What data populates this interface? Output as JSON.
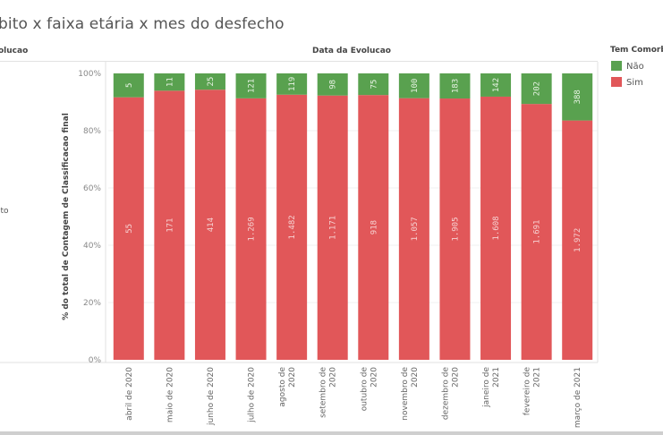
{
  "title": "bito x faixa etária x mes do desfecho",
  "row_header": "olucao",
  "row_label": "ito",
  "colors": {
    "nao": "#59a14f",
    "sim": "#e15759"
  },
  "chart_data": {
    "type": "bar",
    "stacked": true,
    "normalized": true,
    "title": "bito x faixa etária x mes do desfecho",
    "xlabel": "Data da Evolucao",
    "ylabel": "% do total de Contagem de Classificacao final",
    "ylim": [
      0,
      100
    ],
    "yticks": [
      "0%",
      "20%",
      "40%",
      "60%",
      "80%",
      "100%"
    ],
    "ytick_values": [
      0,
      20,
      40,
      60,
      80,
      100
    ],
    "grid": true,
    "legend": {
      "title": "Tem Comorb",
      "placement": "right",
      "entries": [
        "Não",
        "Sim"
      ]
    },
    "categories": [
      [
        "abril de 2020"
      ],
      [
        "maio de 2020"
      ],
      [
        "junho de 2020"
      ],
      [
        "julho de 2020"
      ],
      [
        "agosto de",
        "2020"
      ],
      [
        "setembro de",
        "2020"
      ],
      [
        "outubro de",
        "2020"
      ],
      [
        "novembro de",
        "2020"
      ],
      [
        "dezembro de",
        "2020"
      ],
      [
        "janeiro de",
        "2021"
      ],
      [
        "fevereiro de",
        "2021"
      ],
      [
        "março de 2021"
      ]
    ],
    "series": [
      {
        "name": "Não",
        "values": [
          5,
          11,
          25,
          121,
          119,
          98,
          75,
          100,
          183,
          142,
          202,
          388
        ],
        "labels": [
          "5",
          "11",
          "25",
          "121",
          "119",
          "98",
          "75",
          "100",
          "183",
          "142",
          "202",
          "388"
        ]
      },
      {
        "name": "Sim",
        "values": [
          55,
          171,
          414,
          1269,
          1482,
          1171,
          918,
          1057,
          1905,
          1608,
          1691,
          1972
        ],
        "labels": [
          "55",
          "171",
          "414",
          "1.269",
          "1.482",
          "1.171",
          "918",
          "1.057",
          "1.905",
          "1.608",
          "1.691",
          "1.972"
        ]
      }
    ]
  }
}
